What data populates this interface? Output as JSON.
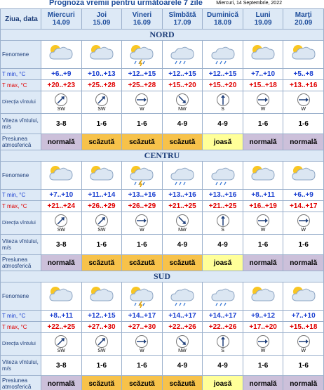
{
  "header": {
    "title": "Prognoza vremii pentru următoarele 7 zile",
    "date": "Miercuri, 14 Septembrie, 2022"
  },
  "table": {
    "corner": "Ziua, data",
    "days": [
      {
        "name": "Miercuri",
        "date": "14.09"
      },
      {
        "name": "Joi",
        "date": "15.09"
      },
      {
        "name": "Vineri",
        "date": "16.09"
      },
      {
        "name": "Sîmbătă",
        "date": "17.09"
      },
      {
        "name": "Duminică",
        "date": "18.09"
      },
      {
        "name": "Luni",
        "date": "19.09"
      },
      {
        "name": "Marţi",
        "date": "20.09"
      }
    ],
    "row_labels": {
      "phenomena": "Fenomene",
      "tmin": "T min, °C",
      "tmax": "T max, °C",
      "wind_dir": "Direcția vîntului",
      "wind_speed": "Viteza vîntului, m/s",
      "pressure": "Presiunea atmosferică"
    },
    "regions": [
      {
        "name": "NORD",
        "tmin": [
          "+6..+9",
          "+10..+13",
          "+12..+15",
          "+12..+15",
          "+12..+15",
          "+7..+10",
          "+5..+8"
        ],
        "tmax": [
          "+20..+23",
          "+25..+28",
          "+25..+28",
          "+15..+20",
          "+15..+20",
          "+15..+18",
          "+13..+16"
        ],
        "wind_dir": [
          "SW",
          "SW",
          "W",
          "NW",
          "S",
          "W",
          "W"
        ],
        "wind_speed": [
          "3-8",
          "1-6",
          "1-6",
          "4-9",
          "4-9",
          "1-6",
          "1-6"
        ],
        "pressure": [
          "normală",
          "scăzută",
          "scăzută",
          "scăzută",
          "joasă",
          "normală",
          "normală"
        ],
        "pressure_colors": [
          "#ccc0da",
          "#f7c24a",
          "#f7c24a",
          "#f7c24a",
          "#ffff99",
          "#ccc0da",
          "#ccc0da"
        ]
      },
      {
        "name": "CENTRU",
        "tmin": [
          "+7..+10",
          "+11..+14",
          "+13..+16",
          "+13..+16",
          "+13..+16",
          "+8..+11",
          "+6..+9"
        ],
        "tmax": [
          "+21..+24",
          "+26..+29",
          "+26..+29",
          "+21..+25",
          "+21..+25",
          "+16..+19",
          "+14..+17"
        ],
        "wind_dir": [
          "SW",
          "SW",
          "W",
          "NW",
          "S",
          "W",
          "W"
        ],
        "wind_speed": [
          "3-8",
          "1-6",
          "1-6",
          "4-9",
          "4-9",
          "1-6",
          "1-6"
        ],
        "pressure": [
          "normală",
          "scăzută",
          "scăzută",
          "scăzută",
          "joasă",
          "normală",
          "normală"
        ],
        "pressure_colors": [
          "#ccc0da",
          "#f7c24a",
          "#f7c24a",
          "#f7c24a",
          "#ffff99",
          "#ccc0da",
          "#ccc0da"
        ]
      },
      {
        "name": "SUD",
        "tmin": [
          "+8..+11",
          "+12..+15",
          "+14..+17",
          "+14..+17",
          "+14..+17",
          "+9..+12",
          "+7..+10"
        ],
        "tmax": [
          "+22..+25",
          "+27..+30",
          "+27..+30",
          "+22..+26",
          "+22..+26",
          "+17..+20",
          "+15..+18"
        ],
        "wind_dir": [
          "SW",
          "SW",
          "W",
          "NW",
          "S",
          "W",
          "W"
        ],
        "wind_speed": [
          "3-8",
          "1-6",
          "1-6",
          "4-9",
          "4-9",
          "1-6",
          "1-6"
        ],
        "pressure": [
          "normală",
          "scăzută",
          "scăzută",
          "scăzută",
          "joasă",
          "normală",
          "normală"
        ],
        "pressure_colors": [
          "#ccc0da",
          "#f7c24a",
          "#f7c24a",
          "#f7c24a",
          "#ffff99",
          "#ccc0da",
          "#ccc0da"
        ]
      }
    ]
  }
}
